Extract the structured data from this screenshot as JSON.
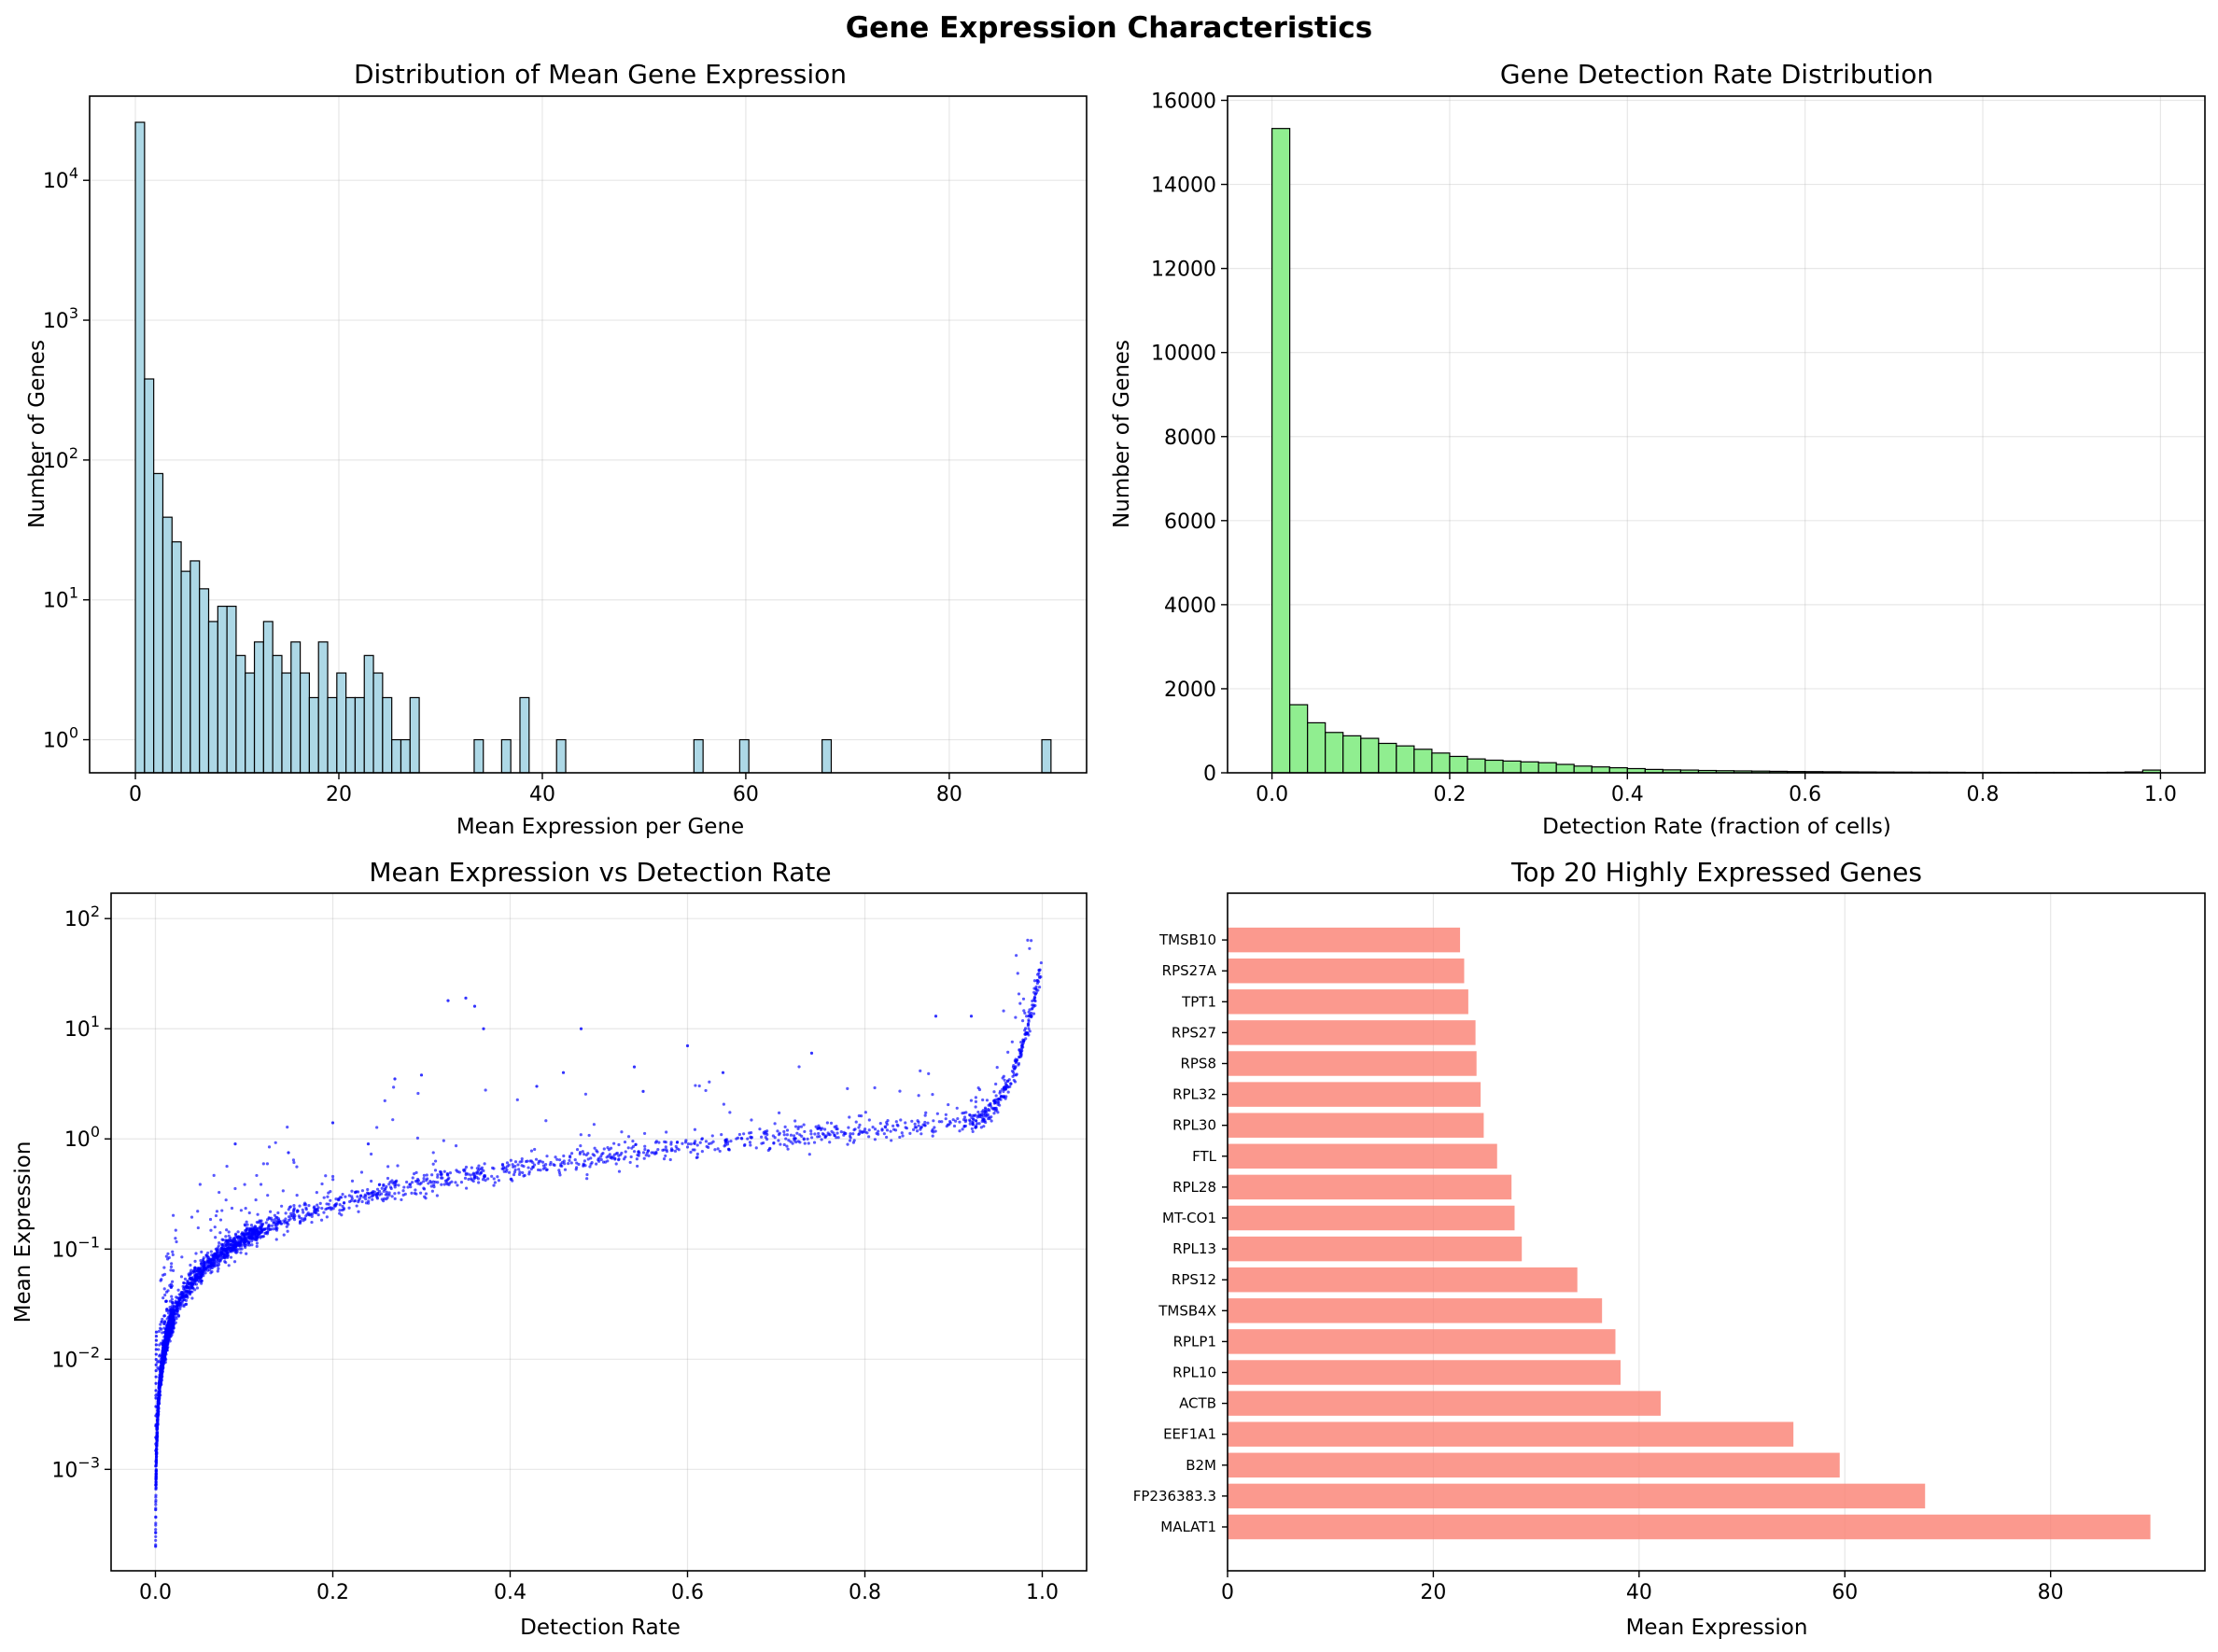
{
  "figure": {
    "suptitle": "Gene Expression Characteristics"
  },
  "chart_data": [
    {
      "id": "hist_mean",
      "type": "bar",
      "subtype": "histogram",
      "title": "Distribution of Mean Gene Expression",
      "xlabel": "Mean Expression per Gene",
      "ylabel": "Number of Genes",
      "yscale": "log",
      "xlim": [
        -4.5,
        93.5
      ],
      "ylim": [
        0.58,
        40000
      ],
      "xticks": [
        0,
        20,
        40,
        60,
        80
      ],
      "yticks": [
        1,
        10,
        100,
        1000,
        10000
      ],
      "ytick_labels": [
        {
          "base": "10",
          "exp": "0"
        },
        {
          "base": "10",
          "exp": "1"
        },
        {
          "base": "10",
          "exp": "2"
        },
        {
          "base": "10",
          "exp": "3"
        },
        {
          "base": "10",
          "exp": "4"
        }
      ],
      "grid": true,
      "color": "#add8e6",
      "edgecolor": "#000000",
      "bin_width": 0.9,
      "x": [
        0.45,
        1.35,
        2.25,
        3.15,
        4.05,
        4.95,
        5.85,
        6.75,
        7.65,
        8.55,
        9.45,
        10.35,
        11.25,
        12.15,
        13.05,
        13.95,
        14.85,
        15.75,
        16.65,
        17.55,
        18.45,
        19.35,
        20.25,
        21.15,
        22.05,
        22.95,
        23.85,
        24.75,
        25.65,
        26.55,
        27.45,
        33.75,
        36.45,
        38.25,
        41.85,
        55.35,
        59.85,
        67.95,
        89.55
      ],
      "values": [
        26000,
        380,
        80,
        39,
        26,
        16,
        19,
        12,
        7,
        9,
        9,
        4,
        3,
        5,
        7,
        4,
        3,
        5,
        3,
        2,
        5,
        2,
        3,
        2,
        2,
        4,
        3,
        2,
        1,
        1,
        2,
        1,
        1,
        2,
        1,
        1,
        1,
        1,
        1
      ]
    },
    {
      "id": "hist_detect",
      "type": "bar",
      "subtype": "histogram",
      "title": "Gene Detection Rate Distribution",
      "xlabel": "Detection Rate (fraction of cells)",
      "ylabel": "Number of Genes",
      "xlim": [
        -0.05,
        1.05
      ],
      "ylim": [
        0,
        16100
      ],
      "xticks": [
        0.0,
        0.2,
        0.4,
        0.6,
        0.8,
        1.0
      ],
      "xtick_labels": [
        "0.0",
        "0.2",
        "0.4",
        "0.6",
        "0.8",
        "1.0"
      ],
      "yticks": [
        0,
        2000,
        4000,
        6000,
        8000,
        10000,
        12000,
        14000,
        16000
      ],
      "grid": true,
      "color": "#90ee90",
      "edgecolor": "#000000",
      "bin_width": 0.02,
      "values": [
        15330,
        1620,
        1190,
        960,
        880,
        820,
        700,
        640,
        560,
        470,
        390,
        330,
        300,
        280,
        260,
        240,
        200,
        160,
        140,
        120,
        100,
        80,
        70,
        65,
        55,
        50,
        45,
        40,
        35,
        30,
        28,
        25,
        22,
        20,
        18,
        16,
        15,
        14,
        12,
        10,
        10,
        10,
        10,
        10,
        10,
        10,
        10,
        12,
        20,
        65
      ]
    },
    {
      "id": "scatter",
      "type": "scatter",
      "title": "Mean Expression vs Detection Rate",
      "xlabel": "Detection Rate",
      "ylabel": "Mean Expression",
      "yscale": "log",
      "xlim": [
        -0.05,
        1.05
      ],
      "ylim": [
        0.00012,
        170
      ],
      "xticks": [
        0.0,
        0.2,
        0.4,
        0.6,
        0.8,
        1.0
      ],
      "xtick_labels": [
        "0.0",
        "0.2",
        "0.4",
        "0.6",
        "0.8",
        "1.0"
      ],
      "yticks": [
        0.001,
        0.01,
        0.1,
        1,
        10,
        100
      ],
      "ytick_labels": [
        {
          "base": "10",
          "exp": "−3"
        },
        {
          "base": "10",
          "exp": "−2"
        },
        {
          "base": "10",
          "exp": "−1"
        },
        {
          "base": "10",
          "exp": "0"
        },
        {
          "base": "10",
          "exp": "1"
        },
        {
          "base": "10",
          "exp": "2"
        }
      ],
      "grid": true,
      "color": "#0000ff",
      "trend": "mean ≈ 1.2·r + 0.35·r² for r < 0.9, rising steeply to ~90 at r = 1.0",
      "outliers": [
        {
          "x": 0.33,
          "y": 18
        },
        {
          "x": 0.35,
          "y": 19
        },
        {
          "x": 0.36,
          "y": 16
        },
        {
          "x": 0.37,
          "y": 10
        },
        {
          "x": 0.48,
          "y": 10
        },
        {
          "x": 0.6,
          "y": 7
        },
        {
          "x": 0.74,
          "y": 6
        },
        {
          "x": 0.88,
          "y": 13
        },
        {
          "x": 0.92,
          "y": 13
        },
        {
          "x": 0.09,
          "y": 0.9
        },
        {
          "x": 0.2,
          "y": 1.4
        },
        {
          "x": 0.15,
          "y": 0.75
        },
        {
          "x": 0.3,
          "y": 3.8
        },
        {
          "x": 0.27,
          "y": 3.5
        },
        {
          "x": 0.54,
          "y": 4.5
        },
        {
          "x": 0.46,
          "y": 4.0
        },
        {
          "x": 0.64,
          "y": 4.0
        },
        {
          "x": 0.43,
          "y": 3.0
        },
        {
          "x": 0.24,
          "y": 0.9
        },
        {
          "x": 0.55,
          "y": 2.7
        }
      ]
    },
    {
      "id": "top20",
      "type": "bar",
      "orientation": "horizontal",
      "title": "Top 20 Highly Expressed Genes",
      "xlabel": "Mean Expression",
      "xlim": [
        0,
        95
      ],
      "xticks": [
        0,
        20,
        40,
        60,
        80
      ],
      "grid": true,
      "color": "#fa8072",
      "categories": [
        "MALAT1",
        "FP236383.3",
        "B2M",
        "EEF1A1",
        "ACTB",
        "RPL10",
        "RPLP1",
        "TMSB4X",
        "RPS12",
        "RPL13",
        "MT-CO1",
        "RPL28",
        "FTL",
        "RPL30",
        "RPL32",
        "RPS8",
        "RPS27",
        "TPT1",
        "RPS27A",
        "TMSB10"
      ],
      "values": [
        89.7,
        67.8,
        59.5,
        55.0,
        42.1,
        38.2,
        37.7,
        36.4,
        34.0,
        28.6,
        27.9,
        27.6,
        26.2,
        24.9,
        24.6,
        24.2,
        24.1,
        23.4,
        23.0,
        22.6
      ]
    }
  ]
}
